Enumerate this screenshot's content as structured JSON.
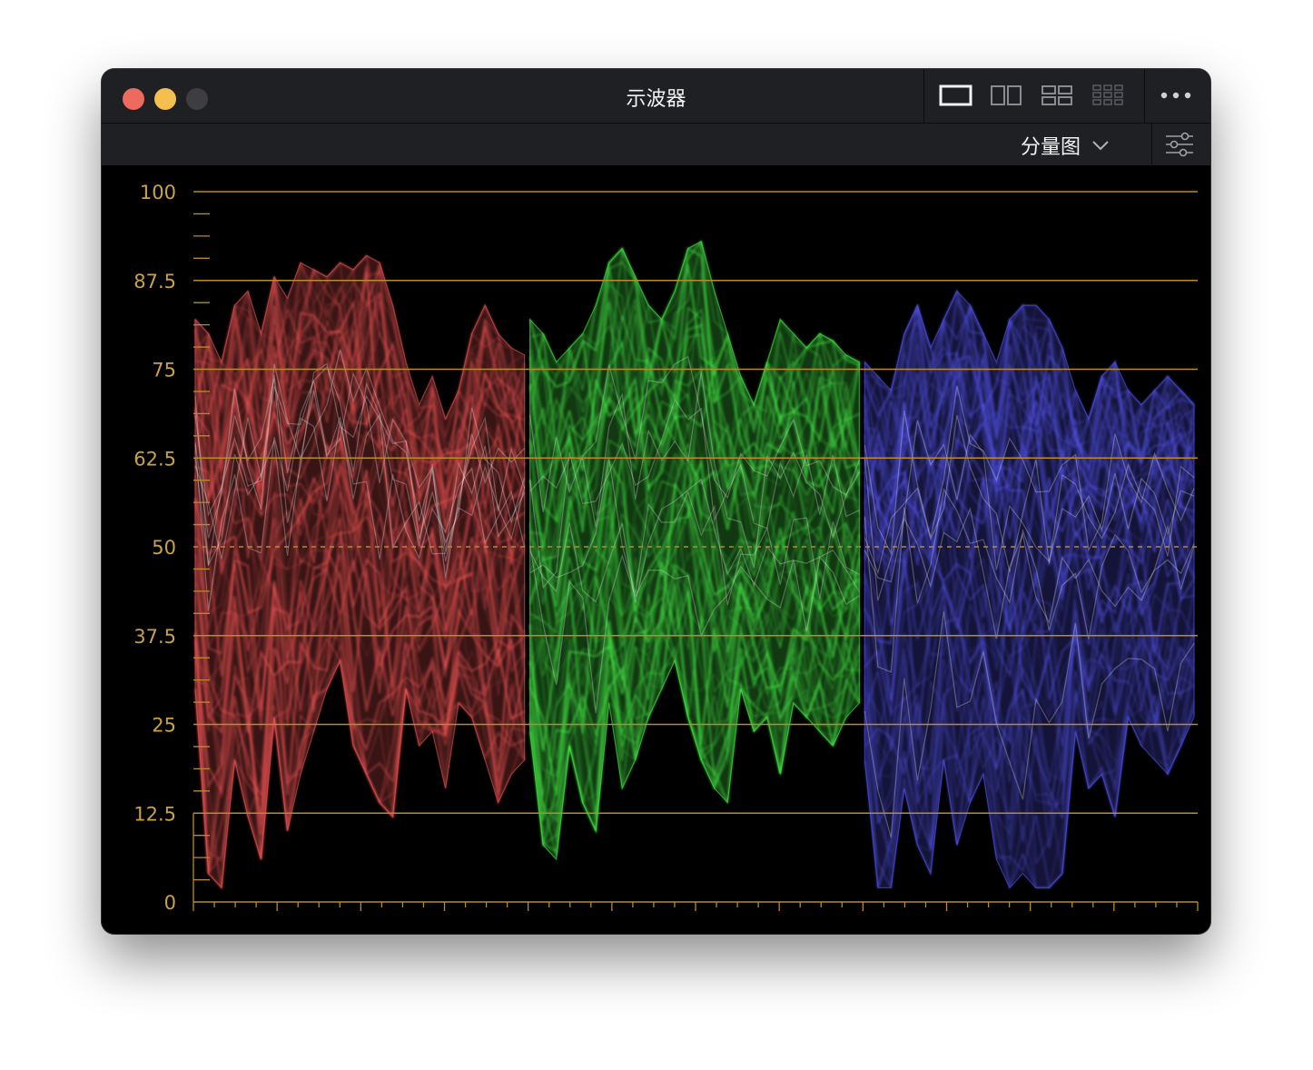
{
  "window": {
    "title": "示波器",
    "buttons": [
      "close",
      "minimize",
      "maximize"
    ]
  },
  "toolbar": {
    "layout_icons": [
      "single-view-icon",
      "dual-view-icon",
      "quad-view-icon",
      "grid-view-icon"
    ],
    "active_layout": "single-view-icon",
    "more_icon": "more-icon",
    "view_mode": "分量图",
    "dropdown_icon": "chevron-down-icon",
    "settings_icon": "sliders-icon"
  },
  "colors": {
    "grid": "#b98a2e",
    "label": "#c8a24a",
    "red": "#ff5a5a",
    "green": "#4cff4c",
    "blue": "#5a5aff"
  },
  "scale": {
    "labels": [
      "100",
      "87.5",
      "75",
      "62.5",
      "50",
      "37.5",
      "25",
      "12.5",
      "0"
    ]
  },
  "chart_data": {
    "type": "waveform-parade",
    "title": "示波器",
    "view": "分量图",
    "ylim": [
      0,
      100
    ],
    "yticks": [
      0,
      12.5,
      25,
      37.5,
      50,
      62.5,
      75,
      87.5,
      100
    ],
    "dashed_reference": 50,
    "grid": true,
    "series": [
      {
        "name": "R",
        "color": "#ff5a5a",
        "upper": [
          82,
          80,
          76,
          84,
          86,
          80,
          88,
          85,
          90,
          89,
          88,
          90,
          89,
          91,
          90,
          84,
          76,
          70,
          74,
          68,
          72,
          80,
          84,
          80,
          78,
          77
        ],
        "lower": [
          30,
          4,
          2,
          20,
          12,
          6,
          26,
          10,
          18,
          24,
          30,
          34,
          22,
          18,
          14,
          12,
          30,
          22,
          24,
          16,
          28,
          26,
          20,
          14,
          18,
          20
        ]
      },
      {
        "name": "G",
        "color": "#4cff4c",
        "upper": [
          82,
          80,
          76,
          78,
          80,
          84,
          90,
          92,
          88,
          84,
          82,
          86,
          92,
          93,
          86,
          80,
          74,
          70,
          76,
          82,
          80,
          78,
          80,
          79,
          77,
          76
        ],
        "lower": [
          24,
          8,
          6,
          22,
          14,
          10,
          28,
          16,
          20,
          26,
          30,
          34,
          26,
          20,
          16,
          14,
          30,
          24,
          26,
          18,
          28,
          26,
          24,
          22,
          26,
          28
        ]
      },
      {
        "name": "B",
        "color": "#5a5aff",
        "upper": [
          76,
          74,
          72,
          80,
          84,
          78,
          82,
          86,
          84,
          80,
          76,
          82,
          84,
          84,
          82,
          78,
          72,
          68,
          74,
          76,
          72,
          70,
          72,
          74,
          72,
          70
        ],
        "lower": [
          20,
          2,
          2,
          16,
          8,
          4,
          20,
          8,
          14,
          18,
          6,
          2,
          4,
          2,
          2,
          4,
          24,
          16,
          18,
          12,
          26,
          22,
          20,
          18,
          22,
          26
        ]
      }
    ]
  }
}
